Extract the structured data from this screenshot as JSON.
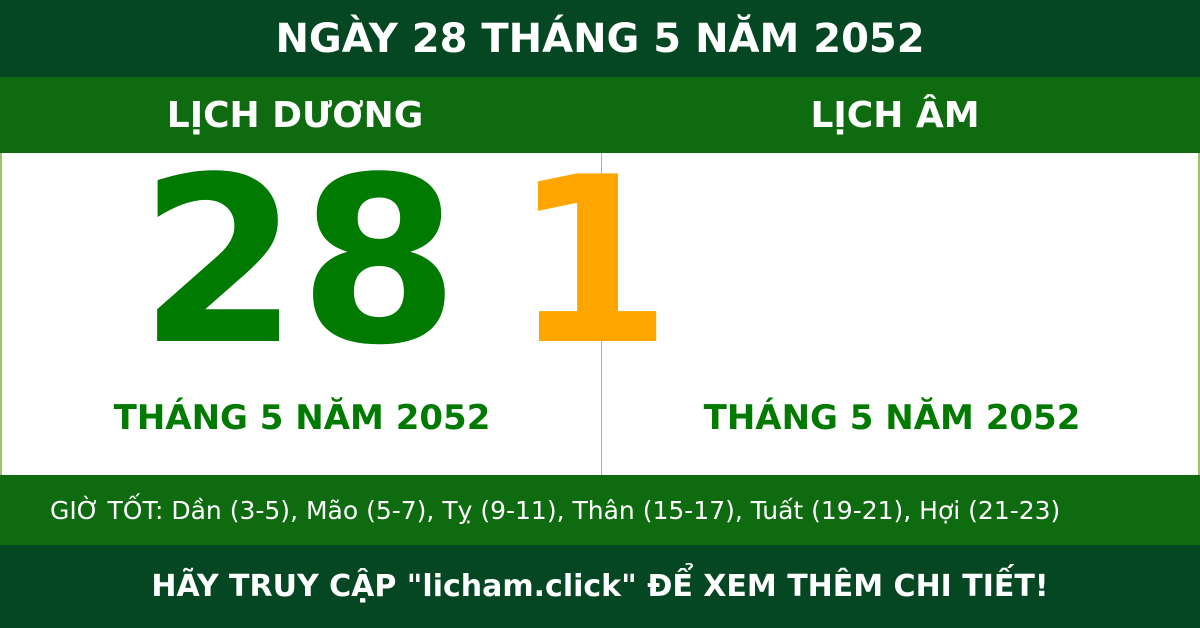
{
  "header": {
    "title": "NGÀY 28 THÁNG 5 NĂM 2052"
  },
  "columns": {
    "solar_label": "LỊCH DƯƠNG",
    "lunar_label": "LỊCH ÂM"
  },
  "solar": {
    "day": "28",
    "month_year": "THÁNG 5 NĂM 2052"
  },
  "lunar": {
    "day": "1",
    "month_year": "THÁNG 5 NĂM 2052"
  },
  "good_hours": "GIỜ TỐT: Dần (3-5), Mão (5-7), Tỵ (9-11), Thân (15-17), Tuất (19-21), Hợi (21-23)",
  "footer": {
    "cta": "HÃY TRUY CẬP \"licham.click\" ĐỂ XEM THÊM CHI TIẾT!"
  },
  "colors": {
    "dark_green": "#044722",
    "green": "#0f6b10",
    "solar_day": "#007a00",
    "lunar_day": "#ffa500"
  }
}
